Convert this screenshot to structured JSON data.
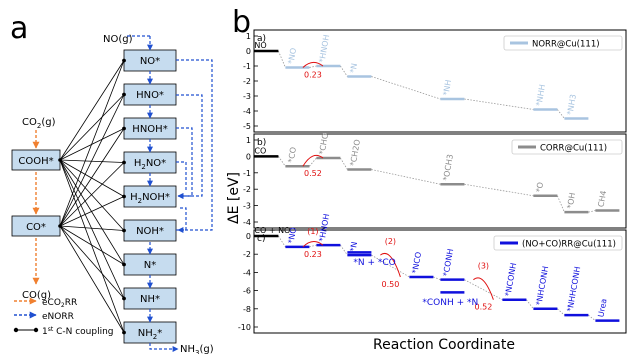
{
  "panel_a": {
    "label": "a",
    "left_boxes": [
      {
        "id": "COOH",
        "text": "COOH*"
      },
      {
        "id": "CO",
        "text": "CO*"
      }
    ],
    "left_species": {
      "co2": "CO2(g)",
      "co": "CO(g)"
    },
    "right_boxes": [
      {
        "id": "NO",
        "text": "NO*"
      },
      {
        "id": "HNO",
        "text": "HNO*"
      },
      {
        "id": "HNOH",
        "text": "HNOH*"
      },
      {
        "id": "H2NO",
        "text": "H2NO*"
      },
      {
        "id": "H2NOH",
        "text": "H2NOH*"
      },
      {
        "id": "NOH",
        "text": "NOH*"
      },
      {
        "id": "N",
        "text": "N*"
      },
      {
        "id": "NH",
        "text": "NH*"
      },
      {
        "id": "NH2",
        "text": "NH2*"
      }
    ],
    "top_species": "NO(g)",
    "bottom_species": "NH3(g)",
    "legend": [
      {
        "label": "eCO2RR",
        "style": "orange-dashed-arrow"
      },
      {
        "label": "eNORR",
        "style": "blue-dashed-arrow"
      },
      {
        "label": "1st C-N coupling",
        "style": "black-dot-line"
      }
    ]
  },
  "panel_b": {
    "label": "b",
    "ylabel": "ΔE [eV]",
    "xlabel": "Reaction Coordinate",
    "colors": {
      "norr": "#a8c4e0",
      "corr": "#8c8c8c",
      "rr": "#1010dd",
      "barrier": "#e01010",
      "start": "#000000"
    }
  },
  "chart_data": [
    {
      "type": "line",
      "panel": "a)",
      "title": "a)",
      "legend": "NORR@Cu(111)",
      "ylim": [
        -5,
        1
      ],
      "yticks": [
        "1",
        "0",
        "-1",
        "-2",
        "-3",
        "-4",
        "-5"
      ],
      "steps": [
        {
          "label": "NO",
          "x": 0,
          "y": 0.0
        },
        {
          "label": "*NO",
          "x": 1,
          "y": -1.1
        },
        {
          "label": "*HNOH",
          "x": 2,
          "y": -1.0
        },
        {
          "label": "*N",
          "x": 3,
          "y": -1.7
        },
        {
          "label": "*NH",
          "x": 6,
          "y": -3.2
        },
        {
          "label": "*NHH",
          "x": 9,
          "y": -3.9
        },
        {
          "label": "*NH3",
          "x": 10,
          "y": -4.5
        }
      ],
      "barriers": [
        {
          "label": "0.23",
          "x": 1.5
        }
      ]
    },
    {
      "type": "line",
      "panel": "b)",
      "title": "b)",
      "legend": "CORR@Cu(111)",
      "ylim": [
        -4,
        1
      ],
      "yticks": [
        "1",
        "0",
        "-1",
        "-2",
        "-3",
        "-4"
      ],
      "steps": [
        {
          "label": "CO",
          "x": 0,
          "y": 0.0
        },
        {
          "label": "*CO",
          "x": 1,
          "y": -0.6
        },
        {
          "label": "*CHO",
          "x": 2,
          "y": -0.1
        },
        {
          "label": "*CH2O",
          "x": 3,
          "y": -0.8
        },
        {
          "label": "*OCH3",
          "x": 6,
          "y": -1.7
        },
        {
          "label": "*O",
          "x": 9,
          "y": -2.4
        },
        {
          "label": "*OH",
          "x": 10,
          "y": -3.4
        },
        {
          "label": "CH4",
          "x": 11,
          "y": -3.3
        }
      ],
      "barriers": [
        {
          "label": "0.52",
          "x": 1.5
        }
      ]
    },
    {
      "type": "line",
      "panel": "c)",
      "title": "c)",
      "legend": "(NO+CO)RR@Cu(111)",
      "ylim": [
        -10,
        0
      ],
      "yticks": [
        "0",
        "-2",
        "-4",
        "-6",
        "-8",
        "-10"
      ],
      "steps": [
        {
          "label": "CO + NO",
          "x": 0,
          "y": 0.0
        },
        {
          "label": "*NO",
          "x": 1,
          "y": -1.2
        },
        {
          "label": "*HNOH",
          "x": 2,
          "y": -1.0
        },
        {
          "label": "*N",
          "x": 3,
          "y": -2.1
        },
        {
          "label": "*NCO",
          "x": 5,
          "y": -4.5
        },
        {
          "label": "*CONH",
          "x": 6,
          "y": -4.8
        },
        {
          "label": "*NCONH",
          "x": 8,
          "y": -7.0
        },
        {
          "label": "*NHCONH",
          "x": 9,
          "y": -8.0
        },
        {
          "label": "*NHHCONH",
          "x": 10,
          "y": -8.7
        },
        {
          "label": "Urea",
          "x": 11,
          "y": -9.3
        }
      ],
      "extra_levels": [
        {
          "x": 3,
          "y": -1.8
        },
        {
          "x": 6,
          "y": -6.2
        }
      ],
      "barriers": [
        {
          "label": "(1)",
          "value": "0.23",
          "x": 1.5
        },
        {
          "label": "(2)",
          "value": "0.50",
          "x": 4
        },
        {
          "label": "(3)",
          "value": "0.52",
          "x": 7
        }
      ],
      "annotations": [
        "*N + *CO",
        "*CONH + *N"
      ]
    }
  ]
}
